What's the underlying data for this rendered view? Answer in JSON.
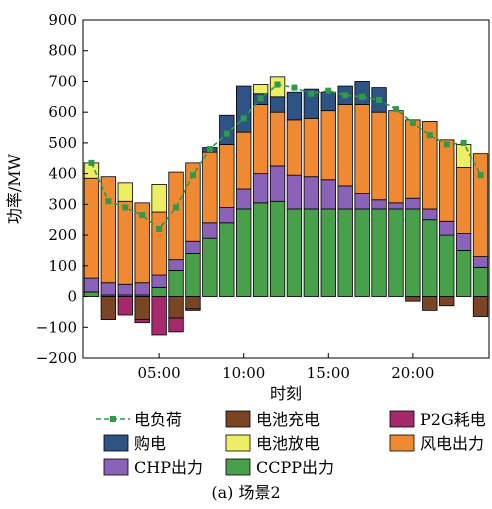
{
  "chart_data": {
    "type": "bar",
    "stacked": true,
    "caption": "(a) 场景2",
    "xlabel": "时刻",
    "ylabel": "功率/MW",
    "ylim": [
      -200,
      900
    ],
    "yticks": [
      "900",
      "800",
      "700",
      "600",
      "500",
      "400",
      "300",
      "200",
      "100",
      "0",
      "−100",
      "−200"
    ],
    "xticks": [
      "05:00",
      "10:00",
      "15:00",
      "20:00"
    ],
    "hours": [
      1,
      2,
      3,
      4,
      5,
      6,
      7,
      8,
      9,
      10,
      11,
      12,
      13,
      14,
      15,
      16,
      17,
      18,
      19,
      20,
      21,
      22,
      23,
      24
    ],
    "series": [
      {
        "key": "ccpp",
        "name": "CCPP出力",
        "color": "#48A04A",
        "values": [
          15,
          5,
          5,
          5,
          30,
          85,
          140,
          190,
          240,
          285,
          305,
          310,
          285,
          285,
          285,
          285,
          285,
          285,
          285,
          285,
          250,
          200,
          150,
          95
        ]
      },
      {
        "key": "chp",
        "name": "CHP出力",
        "color": "#8A63B8",
        "values": [
          45,
          40,
          35,
          40,
          40,
          35,
          40,
          50,
          50,
          65,
          95,
          115,
          110,
          105,
          95,
          75,
          50,
          30,
          20,
          35,
          35,
          45,
          55,
          35
        ]
      },
      {
        "key": "wind",
        "name": "风电出力",
        "color": "#F08A32",
        "values": [
          325,
          345,
          270,
          260,
          205,
          285,
          255,
          230,
          205,
          185,
          225,
          175,
          180,
          190,
          225,
          265,
          290,
          285,
          300,
          255,
          285,
          265,
          215,
          335
        ]
      },
      {
        "key": "purchase",
        "name": "购电",
        "color": "#2E5486",
        "values": [
          0,
          0,
          0,
          0,
          0,
          0,
          0,
          15,
          95,
          150,
          35,
          50,
          90,
          95,
          60,
          60,
          75,
          80,
          0,
          0,
          0,
          0,
          0,
          0
        ]
      },
      {
        "key": "discharge",
        "name": "电池放电",
        "color": "#EDEE63",
        "values": [
          50,
          0,
          60,
          0,
          90,
          0,
          0,
          0,
          0,
          0,
          30,
          65,
          0,
          0,
          0,
          0,
          0,
          0,
          0,
          0,
          0,
          0,
          75,
          0
        ]
      },
      {
        "key": "charge",
        "name": "电池充电",
        "color": "#7B4525",
        "values": [
          0,
          -75,
          0,
          -75,
          0,
          -70,
          -40,
          0,
          0,
          0,
          0,
          0,
          0,
          0,
          0,
          0,
          0,
          0,
          0,
          -15,
          -45,
          -30,
          0,
          -65
        ]
      },
      {
        "key": "p2g",
        "name": "P2G耗电",
        "color": "#A62A6B",
        "values": [
          0,
          0,
          -60,
          -10,
          -125,
          -45,
          -5,
          0,
          0,
          0,
          0,
          0,
          0,
          0,
          0,
          0,
          0,
          0,
          0,
          0,
          0,
          0,
          0,
          0
        ]
      }
    ],
    "load": {
      "name": "电负荷",
      "color": "#2E9A4A",
      "values": [
        435,
        310,
        290,
        265,
        220,
        290,
        395,
        480,
        530,
        580,
        645,
        690,
        680,
        660,
        670,
        655,
        650,
        640,
        610,
        565,
        525,
        495,
        500,
        395
      ]
    },
    "legend": [
      {
        "key": "load",
        "name": "电负荷",
        "kind": "line",
        "color": "#2E9A4A"
      },
      {
        "key": "charge",
        "name": "电池充电",
        "kind": "box",
        "color": "#7B4525"
      },
      {
        "key": "p2g",
        "name": "P2G耗电",
        "kind": "box",
        "color": "#A62A6B"
      },
      {
        "key": "purchase",
        "name": "购电",
        "kind": "box",
        "color": "#2E5486"
      },
      {
        "key": "discharge",
        "name": "电池放电",
        "kind": "box",
        "color": "#EDEE63"
      },
      {
        "key": "wind",
        "name": "风电出力",
        "kind": "box",
        "color": "#F08A32"
      },
      {
        "key": "chp",
        "name": "CHP出力",
        "kind": "box",
        "color": "#8A63B8"
      },
      {
        "key": "ccpp",
        "name": "CCPP出力",
        "kind": "box",
        "color": "#48A04A"
      }
    ],
    "legend_position": "bottom"
  }
}
